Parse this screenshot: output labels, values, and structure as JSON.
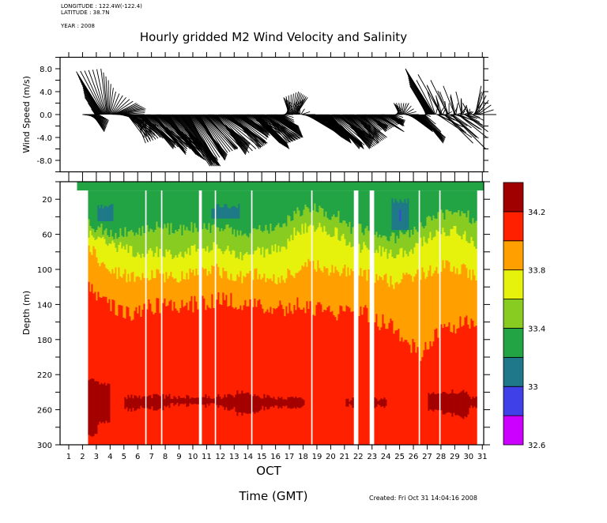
{
  "header": {
    "longitude": "LONGITUDE : 122.4W(-122.4)",
    "latitude": "LATITUDE : 38.7N",
    "year": "YEAR : 2008"
  },
  "footer": {
    "created": "Created: Fri Oct 31 14:04:16 2008"
  },
  "chart_data": [
    {
      "type": "line",
      "subtype": "stick-vector",
      "title": "Hourly gridded M2 Wind Velocity and Salinity",
      "ylabel": "Wind Speed (m/s)",
      "ylim": [
        -10,
        10
      ],
      "yticks": [
        8,
        4,
        0,
        -4,
        -8
      ],
      "ytick_labels": [
        "8.0",
        "4.0",
        "0.0",
        "-4.0",
        "-8.0"
      ],
      "xlim": [
        0.37,
        31.1
      ],
      "sticks_day_u_v": [
        [
          2.0,
          3,
          0
        ],
        [
          2.25,
          4,
          -1
        ],
        [
          2.5,
          3,
          -2
        ],
        [
          2.75,
          2,
          -3
        ],
        [
          3.0,
          -2,
          3
        ],
        [
          3.25,
          -3,
          5
        ],
        [
          3.5,
          -4.7,
          7.5
        ],
        [
          3.75,
          -1,
          8
        ],
        [
          4.0,
          1,
          4
        ],
        [
          4.25,
          4,
          2
        ],
        [
          4.5,
          5,
          1
        ],
        [
          4.75,
          4,
          -1
        ],
        [
          5.0,
          6,
          -2
        ],
        [
          5.25,
          3,
          -4
        ],
        [
          5.5,
          5,
          -3
        ],
        [
          5.75,
          2,
          -5
        ],
        [
          6.0,
          4,
          -4
        ],
        [
          6.25,
          6,
          -5
        ],
        [
          6.5,
          5,
          -6
        ],
        [
          6.75,
          7,
          -5
        ],
        [
          7.0,
          6,
          -7
        ],
        [
          7.25,
          5,
          -6
        ],
        [
          7.5,
          8,
          -6
        ],
        [
          7.75,
          6,
          -7
        ],
        [
          8.0,
          7,
          -8
        ],
        [
          8.25,
          5,
          -7
        ],
        [
          8.5,
          8,
          -8
        ],
        [
          8.75,
          6,
          -9
        ],
        [
          9.0,
          7,
          -9
        ],
        [
          9.25,
          5,
          -8
        ],
        [
          9.5,
          6,
          -9
        ],
        [
          9.75,
          4,
          -8
        ],
        [
          10.0,
          6,
          -7
        ],
        [
          10.25,
          5,
          -8
        ],
        [
          10.5,
          4,
          -7
        ],
        [
          10.75,
          6,
          -6
        ],
        [
          11.0,
          5,
          -6
        ],
        [
          11.25,
          7,
          -5
        ],
        [
          11.5,
          6,
          -6
        ],
        [
          11.75,
          5,
          -7
        ],
        [
          12.0,
          8,
          -5
        ],
        [
          12.25,
          6,
          -4
        ],
        [
          12.5,
          7,
          -5
        ],
        [
          12.75,
          5,
          -6
        ],
        [
          13.0,
          6,
          -4
        ],
        [
          13.25,
          4,
          -3
        ],
        [
          13.5,
          5,
          -3
        ],
        [
          13.75,
          4,
          -4
        ],
        [
          14.0,
          6,
          -2
        ],
        [
          14.25,
          5,
          -5
        ],
        [
          14.5,
          6,
          -6
        ],
        [
          14.75,
          5,
          -5
        ],
        [
          15.0,
          7,
          -4
        ],
        [
          15.25,
          4,
          -5
        ],
        [
          15.5,
          6,
          -4
        ],
        [
          15.75,
          5,
          -3
        ],
        [
          16.0,
          4,
          -2
        ],
        [
          16.25,
          3,
          -3
        ],
        [
          16.5,
          2,
          -1
        ],
        [
          16.75,
          1,
          2
        ],
        [
          17.0,
          -1,
          3
        ],
        [
          17.25,
          1,
          4
        ],
        [
          17.5,
          2,
          3
        ],
        [
          17.75,
          -1,
          2
        ],
        [
          18.0,
          4,
          -1
        ],
        [
          18.25,
          5,
          -3
        ],
        [
          18.5,
          4,
          -2
        ],
        [
          18.75,
          5,
          -4
        ],
        [
          19.0,
          6,
          -5
        ],
        [
          19.25,
          5,
          -4
        ],
        [
          19.5,
          7,
          -6
        ],
        [
          19.75,
          6,
          -5
        ],
        [
          20.0,
          5,
          -6
        ],
        [
          20.25,
          7,
          -4
        ],
        [
          20.5,
          6,
          -5
        ],
        [
          20.75,
          5,
          -6
        ],
        [
          21.0,
          6,
          -5
        ],
        [
          21.25,
          4,
          -4
        ],
        [
          21.5,
          5,
          -3
        ],
        [
          21.75,
          4,
          -5
        ],
        [
          22.0,
          5,
          -4
        ],
        [
          22.25,
          3,
          -3
        ],
        [
          22.5,
          4,
          -2
        ],
        [
          22.75,
          3,
          -3
        ],
        [
          23.0,
          4,
          -2
        ],
        [
          23.25,
          5,
          -3
        ],
        [
          23.5,
          3,
          -2
        ],
        [
          23.75,
          4,
          -1
        ],
        [
          24.0,
          3,
          -2
        ],
        [
          24.25,
          2,
          -1
        ],
        [
          24.5,
          2,
          -2
        ],
        [
          24.75,
          1,
          1
        ],
        [
          25.0,
          -1,
          2
        ],
        [
          25.25,
          1,
          2
        ],
        [
          25.5,
          3,
          -1
        ],
        [
          25.75,
          4,
          -3
        ],
        [
          26.0,
          3,
          -2
        ],
        [
          26.25,
          5,
          -4
        ],
        [
          26.5,
          4,
          -5
        ],
        [
          26.75,
          3,
          -3
        ],
        [
          27.0,
          -3,
          5
        ],
        [
          27.25,
          -4,
          7
        ],
        [
          27.5,
          -5,
          8
        ],
        [
          27.75,
          6,
          -4
        ],
        [
          28.0,
          -4,
          7
        ],
        [
          28.25,
          5,
          -5
        ],
        [
          28.5,
          -3,
          6
        ],
        [
          28.75,
          6,
          -6
        ],
        [
          29.0,
          -2,
          5
        ],
        [
          29.25,
          5,
          -4
        ],
        [
          29.5,
          -1,
          4
        ],
        [
          29.75,
          4,
          -3
        ],
        [
          30.0,
          -1,
          2
        ],
        [
          30.25,
          2,
          -1
        ],
        [
          30.5,
          1,
          5
        ],
        [
          30.75,
          3,
          0
        ]
      ]
    },
    {
      "type": "heatmap",
      "ylabel": "Depth (m)",
      "xlabel": "OCT",
      "xaxis_title": "Time (GMT)",
      "ylim": [
        0,
        300
      ],
      "yticks": [
        20,
        60,
        100,
        140,
        180,
        220,
        260,
        300
      ],
      "xticks": [
        1,
        2,
        3,
        4,
        5,
        6,
        7,
        8,
        9,
        10,
        11,
        12,
        13,
        14,
        15,
        16,
        17,
        18,
        19,
        20,
        21,
        22,
        23,
        24,
        25,
        26,
        27,
        28,
        29,
        30,
        31
      ],
      "xlim": [
        0.37,
        31.1
      ],
      "data_range_days": [
        2.4,
        30.6
      ],
      "surface_strip_days": [
        1.6,
        31.1
      ],
      "surface_strip_depth": 10,
      "colorbar": {
        "levels": [
          32.6,
          32.8,
          33.0,
          33.2,
          33.4,
          33.6,
          33.8,
          34.0,
          34.2,
          34.4
        ],
        "colors": [
          "#cc00ff",
          "#4040e8",
          "#1f778a",
          "#22a444",
          "#88cc22",
          "#e6f20c",
          "#ffa000",
          "#ff2000",
          "#a00000"
        ],
        "tick_values": [
          32.6,
          33,
          33.4,
          33.8,
          34.2
        ],
        "tick_labels": [
          "32.6",
          "33",
          "33.4",
          "33.8",
          "34.2"
        ]
      },
      "profile_days": [
        2.5,
        3.5,
        4.5,
        5.5,
        6.5,
        7.5,
        8.5,
        9.5,
        10.5,
        11.5,
        12.5,
        13.5,
        14.5,
        15.5,
        16.5,
        17.5,
        18.5,
        19.5,
        20.5,
        21.5,
        22.5,
        23.5,
        24.5,
        25.5,
        26.5,
        27.5,
        28.5,
        29.5,
        30.5
      ],
      "isohaline_depth_33_4": [
        50,
        55,
        60,
        55,
        55,
        50,
        55,
        55,
        50,
        55,
        55,
        60,
        55,
        55,
        50,
        35,
        30,
        35,
        40,
        55,
        55,
        60,
        65,
        60,
        50,
        40,
        35,
        35,
        45
      ],
      "isohaline_depth_33_6": [
        58,
        70,
        75,
        80,
        80,
        80,
        85,
        80,
        75,
        75,
        80,
        85,
        80,
        80,
        75,
        55,
        50,
        55,
        60,
        75,
        75,
        80,
        85,
        80,
        70,
        60,
        55,
        60,
        70
      ],
      "isohaline_depth_33_8": [
        76,
        95,
        105,
        110,
        110,
        105,
        110,
        105,
        105,
        100,
        105,
        110,
        105,
        110,
        110,
        100,
        95,
        100,
        100,
        105,
        105,
        110,
        115,
        110,
        105,
        100,
        95,
        100,
        110
      ],
      "isohaline_depth_34_0": [
        120,
        135,
        145,
        150,
        145,
        140,
        140,
        140,
        140,
        135,
        135,
        140,
        140,
        140,
        145,
        140,
        145,
        145,
        150,
        150,
        150,
        160,
        165,
        180,
        200,
        175,
        170,
        160,
        165
      ],
      "salinity_34_2_layer": [
        [
          225,
          290
        ],
        [
          230,
          275
        ],
        null,
        [
          245,
          260
        ],
        [
          245,
          258
        ],
        [
          245,
          258
        ],
        [
          245,
          255
        ],
        [
          245,
          255
        ],
        [
          245,
          255
        ],
        [
          245,
          255
        ],
        [
          245,
          258
        ],
        [
          240,
          265
        ],
        [
          245,
          262
        ],
        [
          245,
          258
        ],
        [
          248,
          256
        ],
        [
          248,
          256
        ],
        null,
        null,
        null,
        [
          248,
          256
        ],
        null,
        [
          248,
          256
        ],
        null,
        null,
        null,
        [
          240,
          262
        ],
        [
          240,
          265
        ],
        [
          240,
          268
        ],
        [
          245,
          258
        ]
      ],
      "low_salinity_pockets": [
        {
          "days": [
            3.0,
            4.2
          ],
          "depth": [
            28,
            45
          ],
          "level": 33.0
        },
        {
          "days": [
            11.3,
            13.4
          ],
          "depth": [
            28,
            42
          ],
          "level": 33.0
        },
        {
          "days": [
            24.4,
            25.6
          ],
          "depth": [
            22,
            55
          ],
          "level": 33.0
        },
        {
          "days": [
            24.9,
            25.1
          ],
          "depth": [
            35,
            45
          ],
          "level": 32.8
        }
      ],
      "missing_days": [
        [
          5.05,
          5.12
        ],
        [
          6.48,
          6.54
        ],
        [
          7.22,
          7.28
        ],
        [
          7.63,
          7.69
        ],
        [
          8.27,
          8.33
        ],
        [
          9.63,
          9.69
        ],
        [
          10.42,
          10.6
        ],
        [
          11.53,
          11.59
        ],
        [
          14.17,
          14.23
        ],
        [
          17.32,
          17.38
        ],
        [
          18.52,
          18.58
        ],
        [
          21.55,
          21.95
        ],
        [
          22.75,
          23.15
        ],
        [
          26.33,
          26.39
        ],
        [
          27.82,
          27.88
        ]
      ]
    }
  ]
}
